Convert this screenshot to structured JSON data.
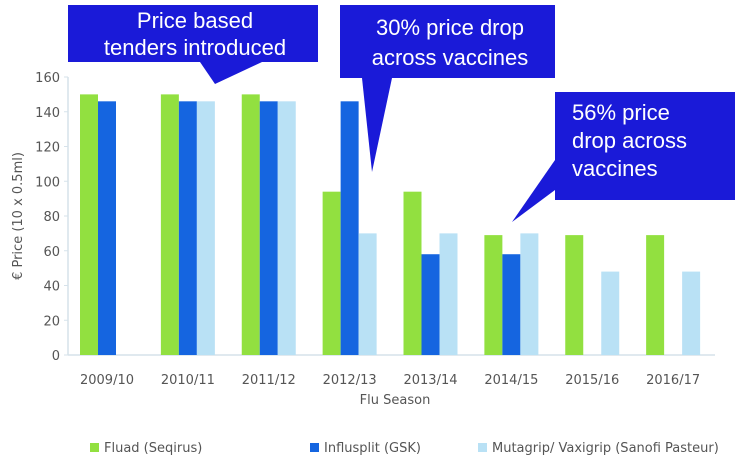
{
  "chart_data": {
    "type": "bar",
    "title": "",
    "xlabel": "Flu Season",
    "ylabel": "€ Price (10 x 0.5ml)",
    "ylim": [
      0,
      160
    ],
    "yticks": [
      0,
      20,
      40,
      60,
      80,
      100,
      120,
      140,
      160
    ],
    "grid": false,
    "legend_position": "bottom",
    "categories": [
      "2009/10",
      "2010/11",
      "2011/12",
      "2012/13",
      "2013/14",
      "2014/15",
      "2015/16",
      "2016/17"
    ],
    "series": [
      {
        "name": "Fluad (Seqirus)",
        "color": "#92e040",
        "values": [
          150,
          150,
          150,
          94,
          94,
          69,
          69,
          69
        ]
      },
      {
        "name": "Influsplit (GSK)",
        "color": "#1565e0",
        "values": [
          146,
          146,
          146,
          146,
          58,
          58,
          null,
          null
        ]
      },
      {
        "name": "Mutagrip/ Vaxigrip (Sanofi Pasteur)",
        "color": "#b9e1f5",
        "values": [
          null,
          146,
          146,
          70,
          70,
          70,
          48,
          48
        ]
      }
    ],
    "annotations": [
      {
        "lines": [
          "Price based",
          "tenders introduced"
        ],
        "points_to": "2011/12"
      },
      {
        "lines": [
          "30% price drop",
          "across vaccines"
        ],
        "points_to": "2012/13"
      },
      {
        "lines": [
          "56% price",
          "drop across",
          "vaccines"
        ],
        "points_to": "2014/15"
      }
    ],
    "annotation_color": "#1a1ad8"
  }
}
